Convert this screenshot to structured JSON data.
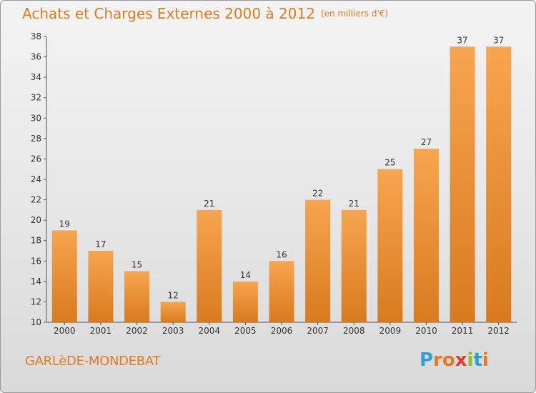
{
  "chart_data": {
    "type": "bar",
    "title": "Achats et Charges Externes 2000 à 2012",
    "subtitle": "(en milliers d'€)",
    "categories": [
      "2000",
      "2001",
      "2002",
      "2003",
      "2004",
      "2005",
      "2006",
      "2007",
      "2008",
      "2009",
      "2010",
      "2011",
      "2012"
    ],
    "values": [
      19,
      17,
      15,
      12,
      21,
      14,
      16,
      22,
      21,
      25,
      27,
      37,
      37
    ],
    "ylim": [
      10,
      38
    ],
    "yticks": [
      10,
      12,
      14,
      16,
      18,
      20,
      22,
      24,
      26,
      28,
      30,
      32,
      34,
      36,
      38
    ],
    "grid": false,
    "legend": "none",
    "colors": {
      "bar_light": "#f7a550",
      "bar_dark": "#d97a1e",
      "title": "#e07b1f"
    }
  },
  "footer": {
    "commune": "GARLèDE-MONDEBAT",
    "logo_letters": [
      {
        "ch": "P",
        "color": "#2a9fd8"
      },
      {
        "ch": "r",
        "color": "#e8771e"
      },
      {
        "ch": "o",
        "color": "#e8771e"
      },
      {
        "ch": "x",
        "color": "#e23a2b"
      },
      {
        "ch": "i",
        "color": "#8bbf2a"
      },
      {
        "ch": "t",
        "color": "#2a9fd8"
      },
      {
        "ch": "i",
        "color": "#e8771e"
      }
    ]
  }
}
